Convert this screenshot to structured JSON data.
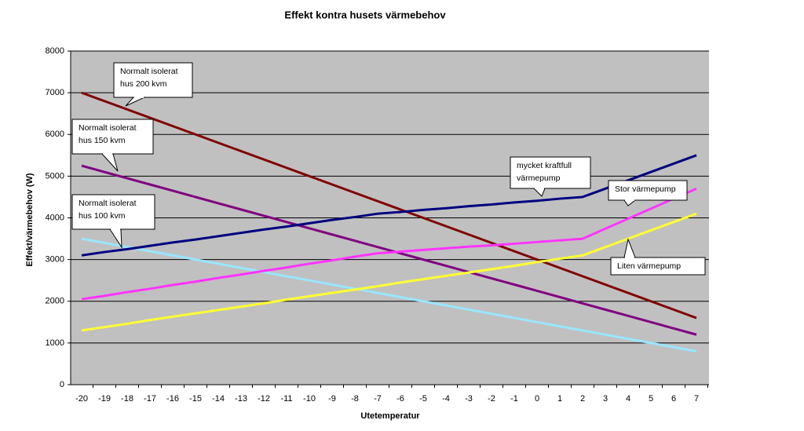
{
  "chart_data": {
    "type": "line",
    "title": "Effekt kontra husets värmebehov",
    "y_label": "Effekt/värmebehov (W)",
    "x_label": "Utetemperatur",
    "categories": [
      -20,
      -19,
      -18,
      -17,
      -16,
      -15,
      -14,
      -13,
      -12,
      -11,
      -10,
      -9,
      -8,
      -7,
      -6,
      -5,
      -4,
      -3,
      -2,
      -1,
      0,
      1,
      2,
      3,
      4,
      5,
      6,
      7
    ],
    "ylim": [
      0,
      8000
    ],
    "yticks": [
      0,
      1000,
      2000,
      3000,
      4000,
      5000,
      6000,
      7000,
      8000
    ],
    "grid": true,
    "series": [
      {
        "color": "#800000",
        "values": [
          7000,
          6800,
          6600,
          6400,
          6200,
          6000,
          5800,
          5600,
          5400,
          5200,
          5000,
          4800,
          4600,
          4400,
          4200,
          4000,
          3800,
          3600,
          3400,
          3200,
          3000,
          2800,
          2600,
          2400,
          2200,
          2000,
          1800,
          1600
        ]
      },
      {
        "color": "#800080",
        "values": [
          5250,
          5100,
          4950,
          4800,
          4650,
          4500,
          4350,
          4200,
          4050,
          3900,
          3750,
          3600,
          3450,
          3300,
          3150,
          3000,
          2850,
          2700,
          2550,
          2400,
          2250,
          2100,
          1950,
          1800,
          1650,
          1500,
          1350,
          1200
        ]
      },
      {
        "color": "#99e6ff",
        "values": [
          3500,
          3400,
          3300,
          3200,
          3100,
          3000,
          2900,
          2800,
          2700,
          2600,
          2500,
          2400,
          2300,
          2200,
          2100,
          2000,
          1900,
          1800,
          1700,
          1600,
          1500,
          1400,
          1300,
          1200,
          1100,
          1000,
          900,
          800
        ]
      },
      {
        "color": "#000080",
        "values": [
          3100,
          3180,
          3250,
          3330,
          3410,
          3480,
          3560,
          3640,
          3720,
          3790,
          3870,
          3950,
          4020,
          4100,
          4140,
          4190,
          4230,
          4280,
          4320,
          4370,
          4410,
          4460,
          4500,
          4700,
          4900,
          5100,
          5300,
          5500
        ]
      },
      {
        "color": "#ff33ff",
        "values": [
          2050,
          2130,
          2220,
          2300,
          2390,
          2470,
          2560,
          2640,
          2730,
          2810,
          2900,
          2980,
          3070,
          3150,
          3190,
          3230,
          3270,
          3310,
          3340,
          3380,
          3420,
          3460,
          3500,
          3740,
          3980,
          4220,
          4460,
          4700
        ]
      },
      {
        "color": "#ffff33",
        "values": [
          1300,
          1380,
          1460,
          1550,
          1630,
          1710,
          1790,
          1870,
          1950,
          2040,
          2120,
          2200,
          2280,
          2360,
          2450,
          2530,
          2610,
          2690,
          2770,
          2850,
          2940,
          3020,
          3100,
          3300,
          3500,
          3700,
          3900,
          4100
        ]
      }
    ],
    "annotations": [
      {
        "lines": [
          "Normalt isolerat",
          "hus 200 kvm"
        ]
      },
      {
        "lines": [
          "Normalt isolerat",
          "hus 150 kvm"
        ]
      },
      {
        "lines": [
          "Normalt isolerat",
          "hus 100 kvm"
        ]
      },
      {
        "lines": [
          "mycket kraftfull",
          "värmepump"
        ]
      },
      {
        "lines": [
          "Stor värmepump"
        ]
      },
      {
        "lines": [
          "Liten värmepump"
        ]
      }
    ]
  }
}
